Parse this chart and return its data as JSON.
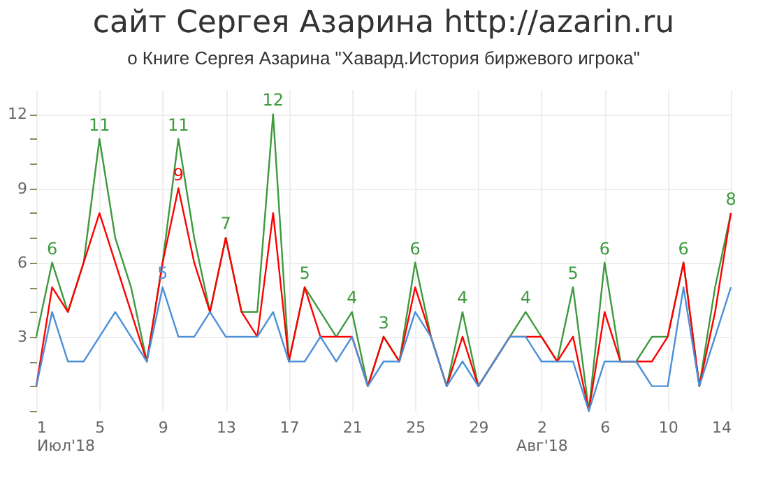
{
  "chart_data": {
    "type": "line",
    "title": "сайт Сергея Азарина http://azarin.ru",
    "subtitle": "о Книге Сергея Азарина \"Хавард.История биржевого игрока\"",
    "x": [
      "2018-07-01",
      "2018-07-02",
      "2018-07-03",
      "2018-07-04",
      "2018-07-05",
      "2018-07-06",
      "2018-07-07",
      "2018-07-08",
      "2018-07-09",
      "2018-07-10",
      "2018-07-11",
      "2018-07-12",
      "2018-07-13",
      "2018-07-14",
      "2018-07-15",
      "2018-07-16",
      "2018-07-17",
      "2018-07-18",
      "2018-07-19",
      "2018-07-20",
      "2018-07-21",
      "2018-07-22",
      "2018-07-23",
      "2018-07-24",
      "2018-07-25",
      "2018-07-26",
      "2018-07-27",
      "2018-07-28",
      "2018-07-29",
      "2018-07-30",
      "2018-07-31",
      "2018-08-01",
      "2018-08-02",
      "2018-08-03",
      "2018-08-04",
      "2018-08-05",
      "2018-08-06",
      "2018-08-07",
      "2018-08-08",
      "2018-08-09",
      "2018-08-10",
      "2018-08-11",
      "2018-08-12",
      "2018-08-13",
      "2018-08-14"
    ],
    "series": [
      {
        "color": "#3d9a3d",
        "values": [
          3,
          6,
          4,
          6,
          11,
          7,
          5,
          2,
          6,
          11,
          7,
          4,
          7,
          4,
          4,
          12,
          2,
          5,
          4,
          3,
          4,
          1,
          3,
          2,
          6,
          3,
          1,
          4,
          1,
          2,
          3,
          4,
          3,
          2,
          5,
          0,
          6,
          2,
          2,
          3,
          3,
          6,
          1,
          5,
          8
        ],
        "value_labels": [
          null,
          "6",
          null,
          null,
          "11",
          null,
          null,
          null,
          null,
          "11",
          null,
          null,
          "7",
          null,
          null,
          "12",
          null,
          "5",
          null,
          null,
          "4",
          null,
          "3",
          null,
          "6",
          null,
          null,
          "4",
          null,
          null,
          null,
          "4",
          null,
          null,
          "5",
          null,
          "6",
          null,
          null,
          null,
          null,
          "6",
          null,
          null,
          "8"
        ]
      },
      {
        "color": "#ff0000",
        "values": [
          1,
          5,
          4,
          6,
          8,
          6,
          4,
          2,
          6,
          9,
          6,
          4,
          7,
          4,
          3,
          8,
          2,
          5,
          3,
          3,
          3,
          1,
          3,
          2,
          5,
          3,
          1,
          3,
          1,
          2,
          3,
          3,
          3,
          2,
          3,
          0,
          4,
          2,
          2,
          2,
          3,
          6,
          1,
          4,
          8
        ],
        "value_labels": [
          null,
          null,
          null,
          null,
          null,
          null,
          null,
          null,
          null,
          "9",
          null,
          null,
          null,
          null,
          null,
          null,
          null,
          null,
          null,
          null,
          null,
          null,
          null,
          null,
          null,
          null,
          null,
          null,
          null,
          null,
          null,
          null,
          null,
          null,
          null,
          null,
          null,
          null,
          null,
          null,
          null,
          null,
          null,
          null,
          null
        ]
      },
      {
        "color": "#4a90d9",
        "values": [
          1,
          4,
          2,
          2,
          3,
          4,
          3,
          2,
          5,
          3,
          3,
          4,
          3,
          3,
          3,
          4,
          2,
          2,
          3,
          2,
          3,
          1,
          2,
          2,
          4,
          3,
          1,
          2,
          1,
          2,
          3,
          3,
          2,
          2,
          2,
          0,
          2,
          2,
          2,
          1,
          1,
          5,
          1,
          3,
          5
        ],
        "value_labels": [
          null,
          null,
          null,
          null,
          null,
          null,
          null,
          null,
          "5",
          null,
          null,
          null,
          null,
          null,
          null,
          null,
          null,
          null,
          null,
          null,
          null,
          null,
          null,
          null,
          null,
          null,
          null,
          null,
          null,
          null,
          null,
          null,
          null,
          null,
          null,
          null,
          null,
          null,
          null,
          null,
          null,
          null,
          null,
          null,
          null
        ]
      }
    ],
    "xlim": [
      "2018-07-01",
      "2018-08-14"
    ],
    "xticks": [
      {
        "value": "2018-07-01",
        "label": "1\nИюл'18"
      },
      {
        "value": "2018-07-05",
        "label": "5"
      },
      {
        "value": "2018-07-09",
        "label": "9"
      },
      {
        "value": "2018-07-13",
        "label": "13"
      },
      {
        "value": "2018-07-17",
        "label": "17"
      },
      {
        "value": "2018-07-21",
        "label": "21"
      },
      {
        "value": "2018-07-25",
        "label": "25"
      },
      {
        "value": "2018-07-29",
        "label": "29"
      },
      {
        "value": "2018-08-02",
        "label": "2\nАвг'18"
      },
      {
        "value": "2018-08-06",
        "label": "6"
      },
      {
        "value": "2018-08-10",
        "label": "10"
      },
      {
        "value": "2018-08-14",
        "label": "14"
      }
    ],
    "ylim": [
      0,
      13
    ],
    "yticks": [
      {
        "value": 0,
        "label": null
      },
      {
        "value": 1,
        "label": null
      },
      {
        "value": 2,
        "label": null
      },
      3,
      {
        "value": 4,
        "label": null
      },
      {
        "value": 5,
        "label": null
      },
      6,
      {
        "value": 7,
        "label": null
      },
      {
        "value": 8,
        "label": null
      },
      9,
      {
        "value": 10,
        "label": null
      },
      {
        "value": 11,
        "label": null
      },
      12
    ],
    "grid": true,
    "marker": "none",
    "line_style": "solid",
    "legend": false
  }
}
